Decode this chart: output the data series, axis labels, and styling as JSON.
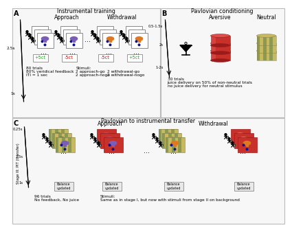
{
  "title_A": "Instrumental training",
  "title_B": "Pavlovian conditioning",
  "title_C": "Pavlovian to instrumental transfer",
  "label_A": "A",
  "label_B": "B",
  "label_C": "C",
  "approach_label": "Approach",
  "withdrawal_label": "Withdrawal",
  "aversive_label": "Aversive",
  "neutral_label": "Neutral",
  "time_2_5s": "2.5s",
  "time_1s": "1s",
  "time_0_5_1_5s": "0.5-1.5s",
  "time_2s": "2s",
  "time_1_2s": "1-2s",
  "time_0_25s": "0.25s",
  "fb_green": "+5ct",
  "fb_red": "-5ct",
  "text_A1": "80 trials",
  "text_A2": "80% veridical feedback",
  "text_A3": "ITI = 1 sec",
  "text_A4": "Stimuli:",
  "text_A5": "2 approach-go",
  "text_A6": "2 withdrawal-go",
  "text_A7": "2 approach-nogo",
  "text_A8": "2 withdrawal-nogo",
  "text_B1": "30 trials",
  "text_B2": "juice delivery on 50% of non-neutral trials",
  "text_B3": "no juice delivery for neutral stimulus",
  "text_C1": "96 trials",
  "text_C2": "No feedback, No juice",
  "text_C3": "Stimuli:",
  "text_C4": "Same as in stage I, but now with stimuli from stage II on background",
  "stage_label": "Stage III: PIT (transfer)",
  "balance_updated": "Balance\nupdated",
  "color_purple": "#7B5DB8",
  "color_orange": "#E07820",
  "color_red": "#C8302A",
  "color_red_dark": "#9B1A1A",
  "color_green1": "#8B9A50",
  "color_green2": "#C8B860",
  "color_feedback_green": "#22AA22",
  "color_feedback_red": "#CC1111",
  "bg_color": "#FFFFFF",
  "panel_border": "#BBBBBB"
}
